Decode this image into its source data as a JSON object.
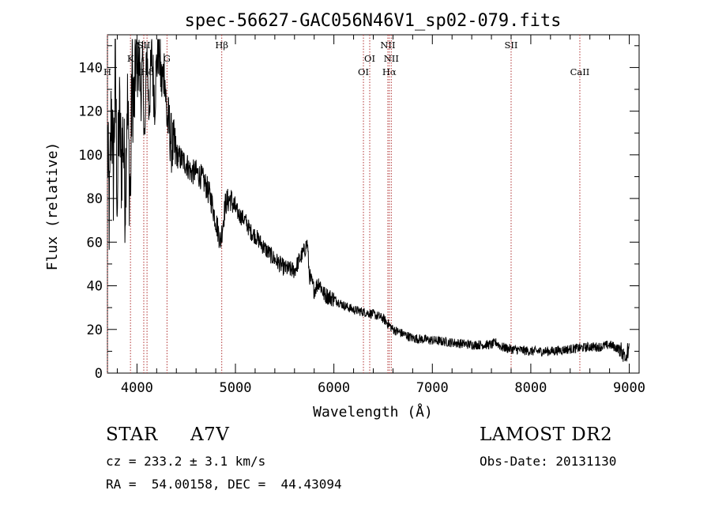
{
  "chart_data": {
    "type": "line",
    "title": "spec-56627-GAC056N46V1_sp02-079.fits",
    "xlabel": "Wavelength (Å)",
    "ylabel": "Flux (relative)",
    "xlim": [
      3700,
      9100
    ],
    "ylim": [
      0,
      155
    ],
    "xticks": [
      "4000",
      "5000",
      "6000",
      "7000",
      "8000",
      "9000"
    ],
    "yticks": [
      "0",
      "20",
      "40",
      "60",
      "80",
      "100",
      "120",
      "140"
    ],
    "grid": false,
    "legend": "none",
    "series": [
      {
        "x": [
          3700,
          3720,
          3740,
          3760,
          3780,
          3800,
          3820,
          3840,
          3860,
          3880,
          3900,
          3920,
          3933,
          3950,
          3970,
          3990,
          4000,
          4020,
          4040,
          4060,
          4080,
          4100,
          4120,
          4150,
          4180,
          4200,
          4220,
          4250,
          4280,
          4300,
          4330,
          4350,
          4380,
          4400,
          4450,
          4500,
          4550,
          4600,
          4650,
          4700,
          4750,
          4800,
          4850,
          4870,
          4900,
          4950,
          5000,
          5050,
          5100,
          5150,
          5200,
          5300,
          5400,
          5500,
          5600,
          5650,
          5700,
          5730,
          5750,
          5800,
          5850,
          5900,
          6000,
          6100,
          6200,
          6300,
          6400,
          6500,
          6563,
          6600,
          6700,
          6800,
          7000,
          7200,
          7400,
          7600,
          7650,
          7700,
          7800,
          8000,
          8200,
          8400,
          8600,
          8700,
          8800,
          8900,
          8960,
          9000
        ],
        "y": [
          105,
          70,
          125,
          90,
          140,
          78,
          120,
          95,
          110,
          80,
          128,
          95,
          78,
          138,
          120,
          148,
          135,
          145,
          128,
          140,
          102,
          152,
          120,
          145,
          125,
          142,
          150,
          132,
          140,
          118,
          112,
          105,
          102,
          100,
          98,
          96,
          92,
          92,
          90,
          86,
          80,
          70,
          60,
          68,
          78,
          80,
          75,
          72,
          70,
          65,
          63,
          57,
          52,
          48,
          47,
          52,
          56,
          60,
          45,
          38,
          42,
          36,
          34,
          31,
          29,
          28,
          27,
          25,
          22,
          20,
          18,
          16,
          15,
          14,
          13,
          13,
          14,
          12,
          11,
          10,
          10,
          11,
          12,
          12,
          13,
          11,
          8,
          10
        ]
      }
    ],
    "lines": [
      {
        "label": "H",
        "x": 3700,
        "row": 3
      },
      {
        "label": "K",
        "x": 3934,
        "row": 2
      },
      {
        "label": "SII",
        "x": 4069,
        "row": 1
      },
      {
        "label": "Hδ",
        "x": 4102,
        "row": 3
      },
      {
        "label": "G",
        "x": 4305,
        "row": 2
      },
      {
        "label": "Hβ",
        "x": 4861,
        "row": 1
      },
      {
        "label": "OI",
        "x": 6300,
        "row": 3
      },
      {
        "label": "OI",
        "x": 6364,
        "row": 2
      },
      {
        "label": "NII",
        "x": 6548,
        "row": 1
      },
      {
        "label": "Hα",
        "x": 6563,
        "row": 3
      },
      {
        "label": "NII",
        "x": 6583,
        "row": 2
      },
      {
        "label": "SII",
        "x": 7800,
        "row": 1
      },
      {
        "label": "CaII",
        "x": 8498,
        "row": 3
      }
    ],
    "line_color": "#b03030"
  },
  "info": {
    "class_label": "STAR",
    "subclass": "A7V",
    "survey": "LAMOST DR2",
    "cz": "cz = 233.2 ± 3.1 km/s",
    "obs_date": "Obs-Date: 20131130",
    "coords": "RA =  54.00158, DEC =  44.43094"
  }
}
